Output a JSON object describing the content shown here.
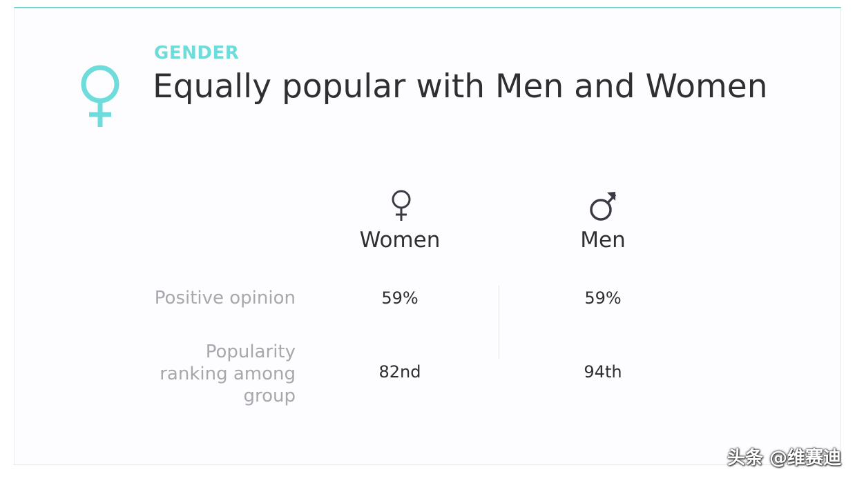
{
  "header": {
    "eyebrow": "GENDER",
    "title": "Equally popular with Men and Women",
    "accent_color": "#6fdcdc",
    "icon": "female-symbol-icon"
  },
  "table": {
    "columns": [
      {
        "label": "Women",
        "icon": "female-symbol-icon"
      },
      {
        "label": "Men",
        "icon": "male-symbol-icon"
      }
    ],
    "rows": [
      {
        "label": "Positive opinion",
        "values": [
          "59%",
          "59%"
        ]
      },
      {
        "label_lines": [
          "Popularity",
          "ranking among",
          "group"
        ],
        "values": [
          "82nd",
          "94th"
        ]
      }
    ]
  },
  "watermark": "头条 @维赛迪"
}
